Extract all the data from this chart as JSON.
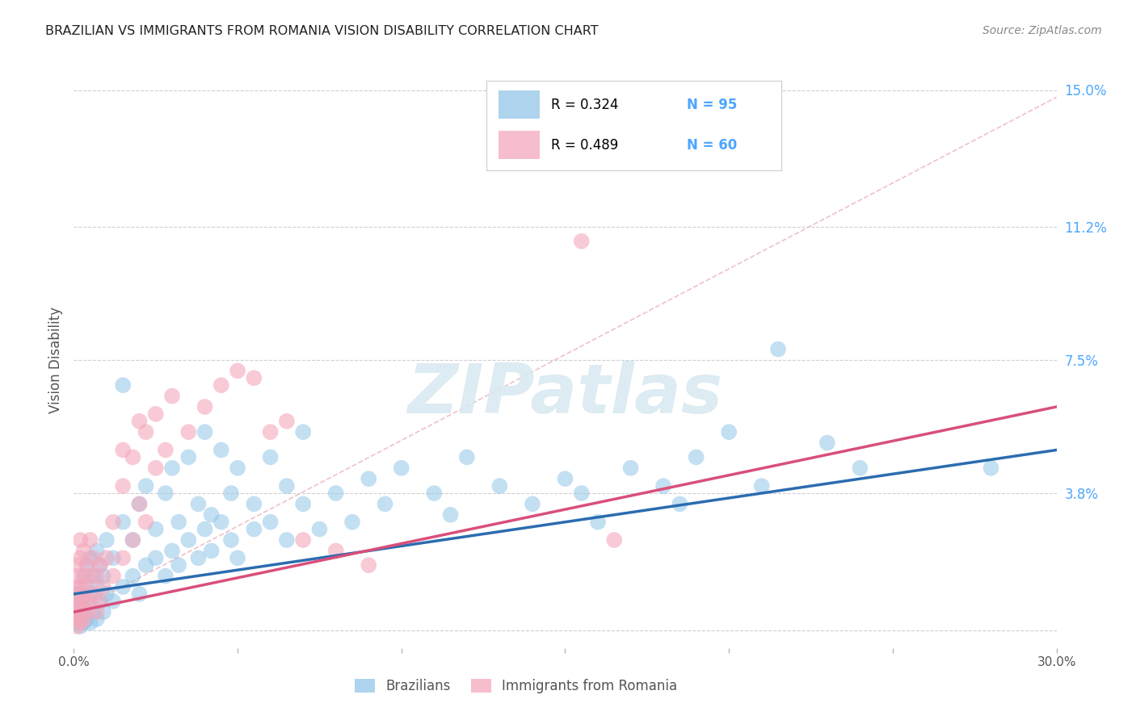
{
  "title": "BRAZILIAN VS IMMIGRANTS FROM ROMANIA VISION DISABILITY CORRELATION CHART",
  "source": "Source: ZipAtlas.com",
  "ylabel": "Vision Disability",
  "xlim": [
    0.0,
    0.3
  ],
  "ylim": [
    -0.005,
    0.155
  ],
  "xticks": [
    0.0,
    0.05,
    0.1,
    0.15,
    0.2,
    0.25,
    0.3
  ],
  "yticks_right": [
    0.0,
    0.038,
    0.075,
    0.112,
    0.15
  ],
  "ytick_labels_right": [
    "",
    "3.8%",
    "7.5%",
    "11.2%",
    "15.0%"
  ],
  "background_color": "#ffffff",
  "grid_color": "#d0d0d0",
  "legend_R1": "R = 0.324",
  "legend_N1": "N = 95",
  "legend_R2": "R = 0.489",
  "legend_N2": "N = 60",
  "blue_color": "#93c6e8",
  "pink_color": "#f4a8bc",
  "blue_line_color": "#2b6cb0",
  "pink_line_color": "#d94f7a",
  "dashed_line_color": "#e8b4bc",
  "title_color": "#222222",
  "label_color": "#555555",
  "right_tick_color": "#4da6ff",
  "legend_text_color": "#000000",
  "legend_val_color": "#4da6ff",
  "blue_scatter": [
    [
      0.001,
      0.002
    ],
    [
      0.001,
      0.003
    ],
    [
      0.001,
      0.005
    ],
    [
      0.001,
      0.007
    ],
    [
      0.002,
      0.001
    ],
    [
      0.002,
      0.004
    ],
    [
      0.002,
      0.008
    ],
    [
      0.002,
      0.01
    ],
    [
      0.003,
      0.002
    ],
    [
      0.003,
      0.006
    ],
    [
      0.003,
      0.012
    ],
    [
      0.003,
      0.015
    ],
    [
      0.004,
      0.003
    ],
    [
      0.004,
      0.008
    ],
    [
      0.004,
      0.018
    ],
    [
      0.005,
      0.002
    ],
    [
      0.005,
      0.01
    ],
    [
      0.005,
      0.02
    ],
    [
      0.006,
      0.005
    ],
    [
      0.006,
      0.015
    ],
    [
      0.007,
      0.003
    ],
    [
      0.007,
      0.012
    ],
    [
      0.007,
      0.022
    ],
    [
      0.008,
      0.008
    ],
    [
      0.008,
      0.018
    ],
    [
      0.009,
      0.005
    ],
    [
      0.009,
      0.015
    ],
    [
      0.01,
      0.01
    ],
    [
      0.01,
      0.025
    ],
    [
      0.012,
      0.008
    ],
    [
      0.012,
      0.02
    ],
    [
      0.015,
      0.012
    ],
    [
      0.015,
      0.03
    ],
    [
      0.015,
      0.068
    ],
    [
      0.018,
      0.015
    ],
    [
      0.018,
      0.025
    ],
    [
      0.02,
      0.01
    ],
    [
      0.02,
      0.035
    ],
    [
      0.022,
      0.018
    ],
    [
      0.022,
      0.04
    ],
    [
      0.025,
      0.02
    ],
    [
      0.025,
      0.028
    ],
    [
      0.028,
      0.015
    ],
    [
      0.028,
      0.038
    ],
    [
      0.03,
      0.022
    ],
    [
      0.03,
      0.045
    ],
    [
      0.032,
      0.018
    ],
    [
      0.032,
      0.03
    ],
    [
      0.035,
      0.025
    ],
    [
      0.035,
      0.048
    ],
    [
      0.038,
      0.02
    ],
    [
      0.038,
      0.035
    ],
    [
      0.04,
      0.028
    ],
    [
      0.04,
      0.055
    ],
    [
      0.042,
      0.022
    ],
    [
      0.042,
      0.032
    ],
    [
      0.045,
      0.03
    ],
    [
      0.045,
      0.05
    ],
    [
      0.048,
      0.025
    ],
    [
      0.048,
      0.038
    ],
    [
      0.05,
      0.02
    ],
    [
      0.05,
      0.045
    ],
    [
      0.055,
      0.028
    ],
    [
      0.055,
      0.035
    ],
    [
      0.06,
      0.03
    ],
    [
      0.06,
      0.048
    ],
    [
      0.065,
      0.025
    ],
    [
      0.065,
      0.04
    ],
    [
      0.07,
      0.035
    ],
    [
      0.07,
      0.055
    ],
    [
      0.075,
      0.028
    ],
    [
      0.08,
      0.038
    ],
    [
      0.085,
      0.03
    ],
    [
      0.09,
      0.042
    ],
    [
      0.095,
      0.035
    ],
    [
      0.1,
      0.045
    ],
    [
      0.11,
      0.038
    ],
    [
      0.115,
      0.032
    ],
    [
      0.12,
      0.048
    ],
    [
      0.13,
      0.04
    ],
    [
      0.14,
      0.035
    ],
    [
      0.15,
      0.042
    ],
    [
      0.155,
      0.038
    ],
    [
      0.16,
      0.03
    ],
    [
      0.17,
      0.045
    ],
    [
      0.18,
      0.04
    ],
    [
      0.185,
      0.035
    ],
    [
      0.19,
      0.048
    ],
    [
      0.2,
      0.055
    ],
    [
      0.21,
      0.04
    ],
    [
      0.215,
      0.078
    ],
    [
      0.23,
      0.052
    ],
    [
      0.24,
      0.045
    ],
    [
      0.28,
      0.045
    ]
  ],
  "pink_scatter": [
    [
      0.001,
      0.001
    ],
    [
      0.001,
      0.003
    ],
    [
      0.001,
      0.005
    ],
    [
      0.001,
      0.007
    ],
    [
      0.001,
      0.01
    ],
    [
      0.001,
      0.012
    ],
    [
      0.001,
      0.015
    ],
    [
      0.001,
      0.018
    ],
    [
      0.002,
      0.002
    ],
    [
      0.002,
      0.005
    ],
    [
      0.002,
      0.008
    ],
    [
      0.002,
      0.012
    ],
    [
      0.002,
      0.02
    ],
    [
      0.002,
      0.025
    ],
    [
      0.003,
      0.003
    ],
    [
      0.003,
      0.008
    ],
    [
      0.003,
      0.015
    ],
    [
      0.003,
      0.022
    ],
    [
      0.004,
      0.005
    ],
    [
      0.004,
      0.012
    ],
    [
      0.004,
      0.018
    ],
    [
      0.005,
      0.008
    ],
    [
      0.005,
      0.015
    ],
    [
      0.005,
      0.025
    ],
    [
      0.006,
      0.01
    ],
    [
      0.006,
      0.02
    ],
    [
      0.007,
      0.005
    ],
    [
      0.007,
      0.015
    ],
    [
      0.008,
      0.008
    ],
    [
      0.008,
      0.018
    ],
    [
      0.009,
      0.012
    ],
    [
      0.01,
      0.02
    ],
    [
      0.012,
      0.015
    ],
    [
      0.012,
      0.03
    ],
    [
      0.015,
      0.02
    ],
    [
      0.015,
      0.04
    ],
    [
      0.015,
      0.05
    ],
    [
      0.018,
      0.025
    ],
    [
      0.018,
      0.048
    ],
    [
      0.02,
      0.035
    ],
    [
      0.02,
      0.058
    ],
    [
      0.022,
      0.03
    ],
    [
      0.022,
      0.055
    ],
    [
      0.025,
      0.045
    ],
    [
      0.025,
      0.06
    ],
    [
      0.028,
      0.05
    ],
    [
      0.03,
      0.065
    ],
    [
      0.035,
      0.055
    ],
    [
      0.04,
      0.062
    ],
    [
      0.045,
      0.068
    ],
    [
      0.05,
      0.072
    ],
    [
      0.055,
      0.07
    ],
    [
      0.06,
      0.055
    ],
    [
      0.065,
      0.058
    ],
    [
      0.07,
      0.025
    ],
    [
      0.08,
      0.022
    ],
    [
      0.09,
      0.018
    ],
    [
      0.155,
      0.108
    ],
    [
      0.165,
      0.025
    ]
  ],
  "blue_line_x": [
    0.0,
    0.3
  ],
  "blue_line_y": [
    0.01,
    0.05
  ],
  "pink_line_x": [
    0.0,
    0.3
  ],
  "pink_line_y": [
    0.005,
    0.062
  ],
  "dashed_line_x": [
    0.0,
    0.3
  ],
  "dashed_line_y": [
    0.005,
    0.148
  ]
}
